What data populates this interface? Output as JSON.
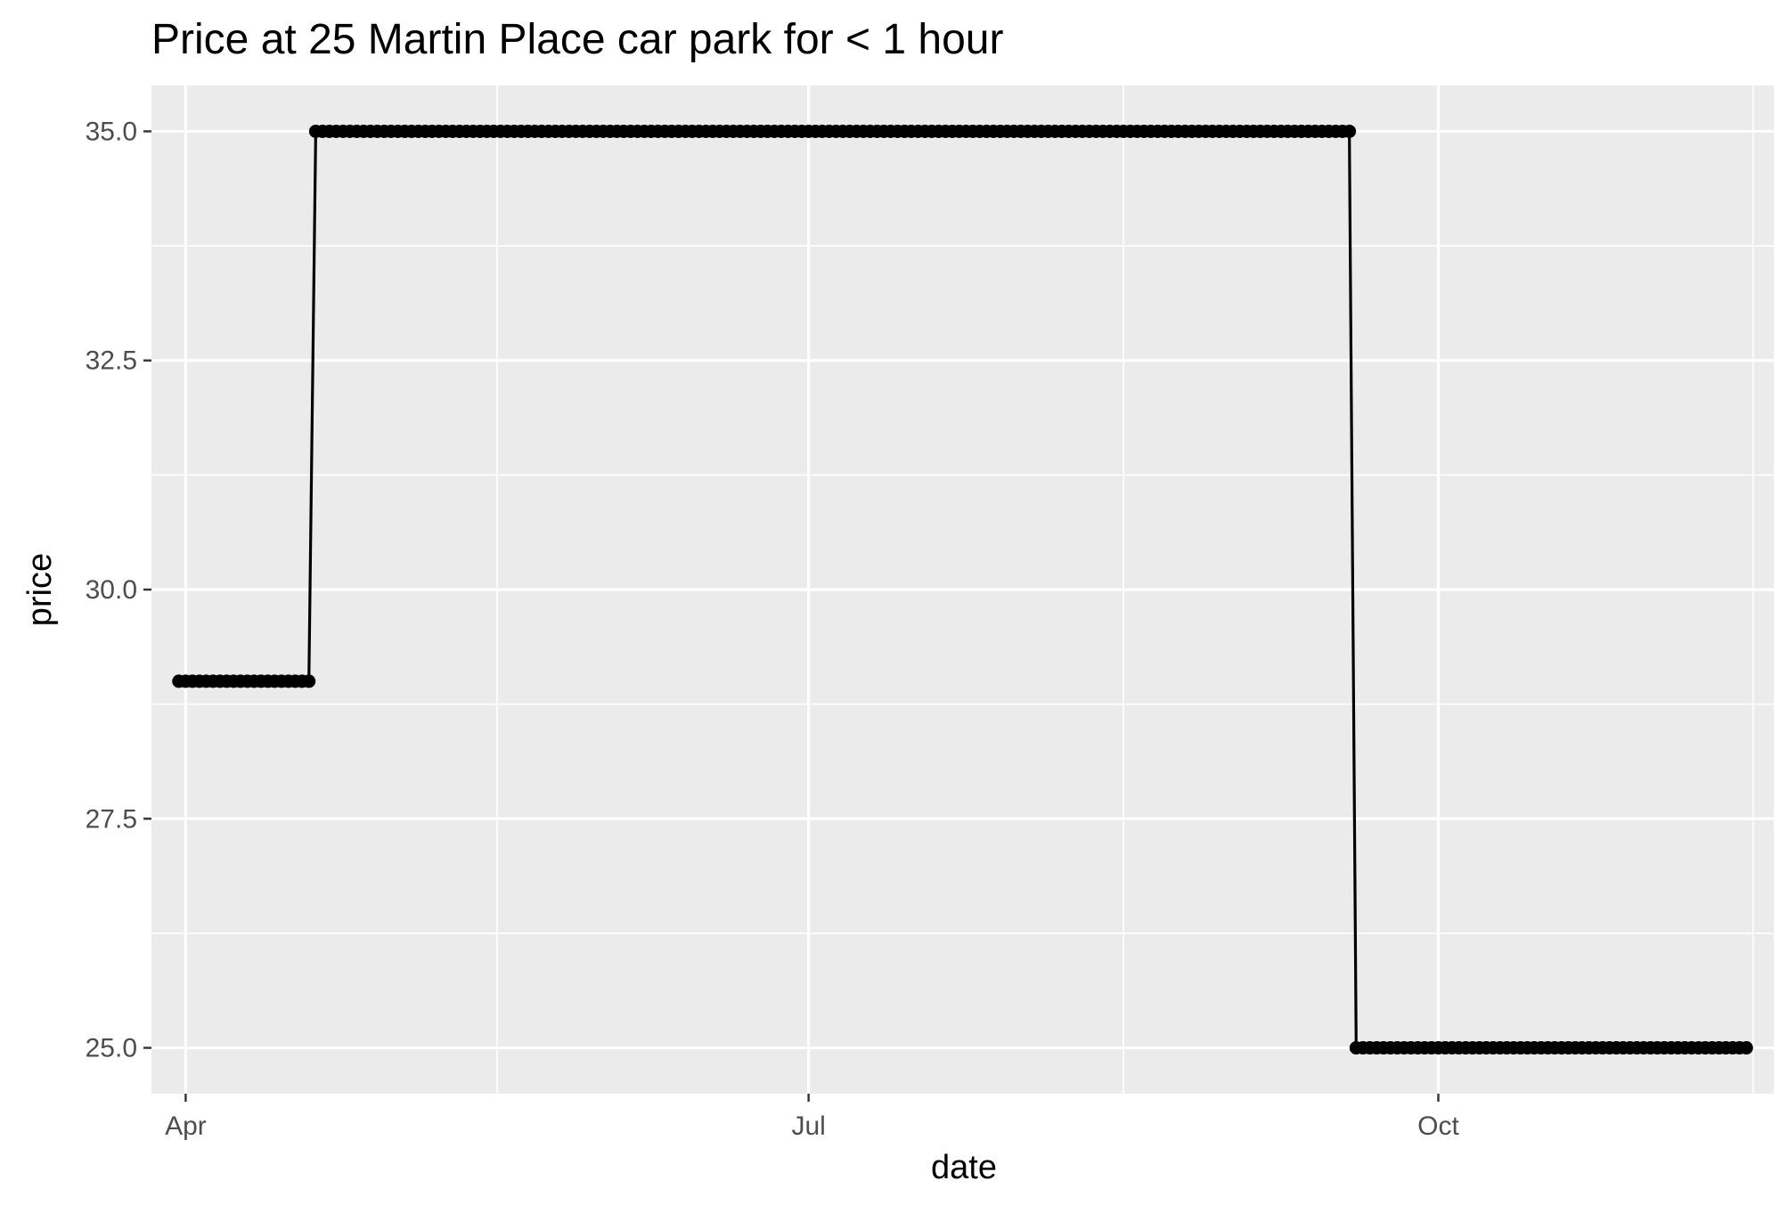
{
  "chart_data": {
    "type": "line",
    "title": "Price at 25 Martin Place car park for < 1 hour",
    "xlabel": "date",
    "ylabel": "price",
    "x_range": [
      "2023-03-27",
      "2023-11-19"
    ],
    "x_ticks": [
      {
        "date": "2023-04-01",
        "label": "Apr"
      },
      {
        "date": "2023-07-01",
        "label": "Jul"
      },
      {
        "date": "2023-10-01",
        "label": "Oct"
      }
    ],
    "ylim": [
      24.5,
      35.5
    ],
    "y_ticks": [
      25.0,
      27.5,
      30.0,
      32.5,
      35.0
    ],
    "y_tick_labels": [
      "25.0",
      "27.5",
      "30.0",
      "32.5",
      "35.0"
    ],
    "grid": true,
    "legend": "none",
    "line_color": "#000000",
    "point_color": "#000000",
    "panel_background": "#ebebeb",
    "grid_color": "#ffffff",
    "series": [
      {
        "segments": [
          {
            "start": "2023-03-31",
            "end": "2023-04-19",
            "value": 29
          },
          {
            "start": "2023-04-20",
            "end": "2023-09-18",
            "value": 35
          },
          {
            "start": "2023-09-19",
            "end": "2023-11-15",
            "value": 25
          }
        ]
      }
    ]
  }
}
